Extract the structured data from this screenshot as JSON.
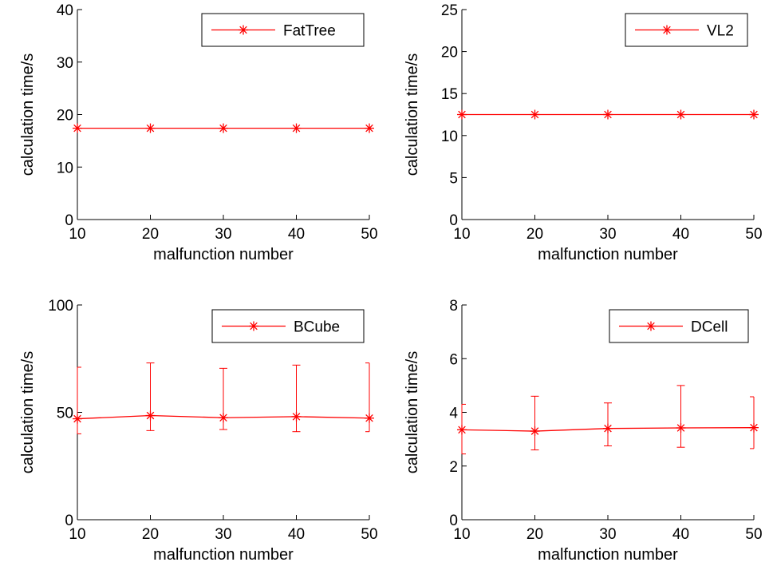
{
  "chart_data": [
    {
      "type": "line",
      "title": "",
      "xlabel": "malfunction number",
      "ylabel": "calculation time/s",
      "x": [
        10,
        20,
        30,
        40,
        50
      ],
      "xlim": [
        10,
        50
      ],
      "ylim": [
        0,
        40
      ],
      "xticks": [
        "10",
        "20",
        "30",
        "40",
        "50"
      ],
      "yticks": [
        "0",
        "10",
        "20",
        "30",
        "40"
      ],
      "grid": false,
      "legend_position": "top-right",
      "series": [
        {
          "name": "FatTree",
          "color": "#ff0000",
          "marker": "asterisk",
          "values": [
            17.4,
            17.4,
            17.4,
            17.4,
            17.4
          ]
        }
      ]
    },
    {
      "type": "line",
      "title": "",
      "xlabel": "malfunction number",
      "ylabel": "calculation time/s",
      "x": [
        10,
        20,
        30,
        40,
        50
      ],
      "xlim": [
        10,
        50
      ],
      "ylim": [
        0,
        25
      ],
      "xticks": [
        "10",
        "20",
        "30",
        "40",
        "50"
      ],
      "yticks": [
        "0",
        "5",
        "10",
        "15",
        "20",
        "25"
      ],
      "grid": false,
      "legend_position": "top-right",
      "series": [
        {
          "name": "VL2",
          "color": "#ff0000",
          "marker": "asterisk",
          "values": [
            12.5,
            12.5,
            12.5,
            12.5,
            12.5
          ]
        }
      ]
    },
    {
      "type": "line",
      "title": "",
      "xlabel": "malfunction number",
      "ylabel": "calculation time/s",
      "x": [
        10,
        20,
        30,
        40,
        50
      ],
      "xlim": [
        10,
        50
      ],
      "ylim": [
        0,
        100
      ],
      "xticks": [
        "10",
        "20",
        "30",
        "40",
        "50"
      ],
      "yticks": [
        "0",
        "50",
        "100"
      ],
      "grid": false,
      "legend_position": "top-right",
      "series": [
        {
          "name": "BCube",
          "color": "#ff0000",
          "marker": "asterisk",
          "values": [
            47,
            48.5,
            47.5,
            48,
            47.3
          ],
          "error_low": [
            40,
            41.5,
            42,
            41,
            41
          ],
          "error_high": [
            71,
            73,
            70.5,
            72,
            73
          ]
        }
      ]
    },
    {
      "type": "line",
      "title": "",
      "xlabel": "malfunction number",
      "ylabel": "calculation time/s",
      "x": [
        10,
        20,
        30,
        40,
        50
      ],
      "xlim": [
        10,
        50
      ],
      "ylim": [
        0,
        8
      ],
      "xticks": [
        "10",
        "20",
        "30",
        "40",
        "50"
      ],
      "yticks": [
        "0",
        "2",
        "4",
        "6",
        "8"
      ],
      "grid": false,
      "legend_position": "top-right",
      "series": [
        {
          "name": "DCell",
          "color": "#ff0000",
          "marker": "asterisk",
          "values": [
            3.35,
            3.3,
            3.4,
            3.42,
            3.43
          ],
          "error_low": [
            2.45,
            2.6,
            2.75,
            2.7,
            2.65
          ],
          "error_high": [
            4.3,
            4.6,
            4.35,
            5.0,
            4.58
          ]
        }
      ]
    }
  ]
}
